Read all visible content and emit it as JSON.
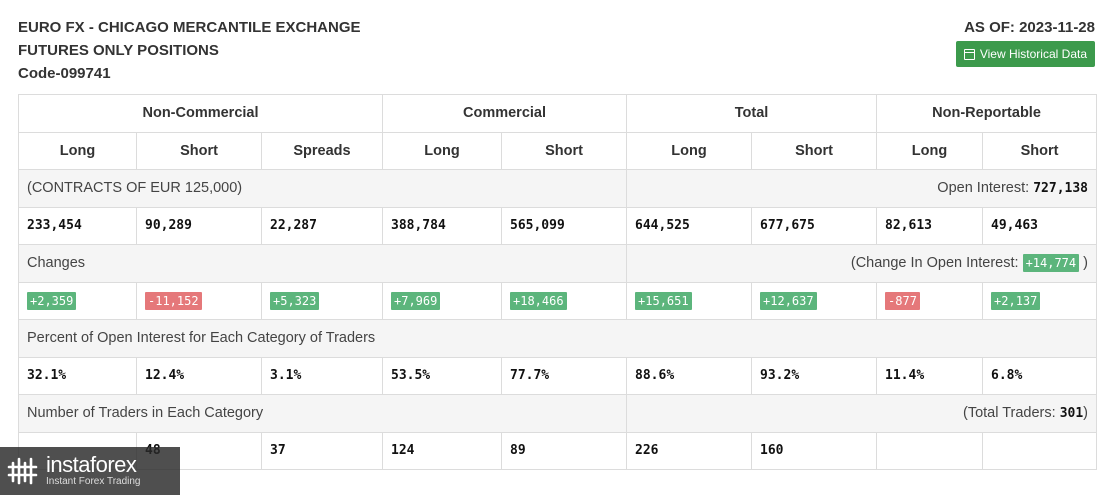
{
  "header": {
    "line1": "EURO FX - CHICAGO MERCANTILE EXCHANGE",
    "line2": "FUTURES ONLY POSITIONS",
    "code": "Code-099741",
    "as_of": "AS OF: 2023-11-28",
    "history_button": "View Historical Data"
  },
  "groups": [
    "Non-Commercial",
    "Commercial",
    "Total",
    "Non-Reportable"
  ],
  "subheaders": [
    "Long",
    "Short",
    "Spreads",
    "Long",
    "Short",
    "Long",
    "Short",
    "Long",
    "Short"
  ],
  "contracts": {
    "label": "(CONTRACTS OF EUR 125,000)",
    "oi_label": "Open Interest:",
    "oi_value": "727,138"
  },
  "positions": [
    "233,454",
    "90,289",
    "22,287",
    "388,784",
    "565,099",
    "644,525",
    "677,675",
    "82,613",
    "49,463"
  ],
  "changes": {
    "label": "Changes",
    "oi_prefix": "(Change In Open Interest:",
    "oi_value": "+14,774",
    "oi_suffix": ")",
    "values": [
      "+2,359",
      "-11,152",
      "+5,323",
      "+7,969",
      "+18,466",
      "+15,651",
      "+12,637",
      "-877",
      "+2,137"
    ]
  },
  "percent": {
    "label": "Percent of Open Interest for Each Category of Traders",
    "values": [
      "32.1%",
      "12.4%",
      "3.1%",
      "53.5%",
      "77.7%",
      "88.6%",
      "93.2%",
      "11.4%",
      "6.8%"
    ]
  },
  "traders": {
    "label": "Number of Traders in Each Category",
    "total_prefix": "(Total Traders:",
    "total_value": "301",
    "total_suffix": ")",
    "values": [
      "",
      "48",
      "37",
      "124",
      "89",
      "226",
      "160",
      "",
      ""
    ]
  },
  "watermark": {
    "name": "instaforex",
    "tagline": "Instant Forex Trading"
  },
  "colors": {
    "positive": "#5cb57c",
    "negative": "#e5787a",
    "button": "#3c9a4c"
  }
}
